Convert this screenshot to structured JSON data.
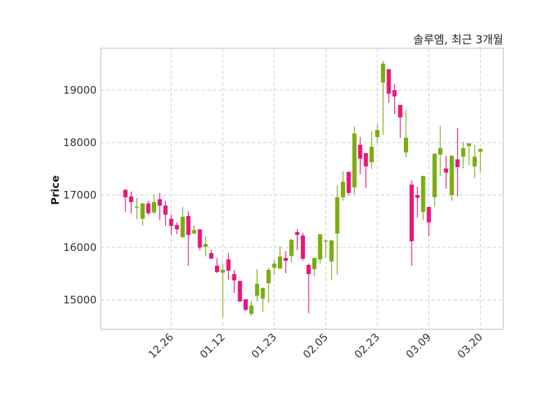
{
  "chart_data": {
    "type": "candlestick",
    "title": "솔루엠, 최근 3개월",
    "xlabel": "",
    "ylabel": "Price",
    "ylim": [
      14440,
      19800
    ],
    "xlim": [
      -4.3,
      66
    ],
    "grid": true,
    "colors": {
      "up": "#7aad12",
      "down": "#e8177a",
      "grid": "#cccccc",
      "frame": "#d0d0d0"
    },
    "yticks": [
      15000,
      16000,
      17000,
      18000,
      19000
    ],
    "xticks": [
      {
        "index": 8,
        "label": "12.26"
      },
      {
        "index": 17,
        "label": "01.12"
      },
      {
        "index": 26,
        "label": "01.23"
      },
      {
        "index": 35,
        "label": "02.05"
      },
      {
        "index": 44,
        "label": "02.23"
      },
      {
        "index": 53,
        "label": "03.09"
      },
      {
        "index": 62,
        "label": "03.20"
      }
    ],
    "ohlc_columns": [
      "open",
      "high",
      "low",
      "close"
    ],
    "ohlc": [
      [
        17100,
        17107,
        16680,
        16960
      ],
      [
        16973,
        17067,
        16653,
        16867
      ],
      [
        16767,
        16947,
        16533,
        16780
      ],
      [
        16547,
        16853,
        16413,
        16840
      ],
      [
        16840,
        16893,
        16613,
        16653
      ],
      [
        16667,
        17013,
        16640,
        16867
      ],
      [
        16920,
        17040,
        16520,
        16800
      ],
      [
        16800,
        16893,
        16413,
        16627
      ],
      [
        16547,
        16627,
        16240,
        16413
      ],
      [
        16427,
        16480,
        16253,
        16347
      ],
      [
        16200,
        16773,
        16173,
        16587
      ],
      [
        16600,
        16693,
        15653,
        16240
      ],
      [
        16267,
        16427,
        16253,
        16333
      ],
      [
        16347,
        16347,
        15947,
        16000
      ],
      [
        16013,
        16213,
        15827,
        16067
      ],
      [
        15893,
        15960,
        15787,
        15787
      ],
      [
        15653,
        15800,
        15507,
        15533
      ],
      [
        15520,
        15680,
        14667,
        15573
      ],
      [
        15773,
        15893,
        15387,
        15560
      ],
      [
        15493,
        15573,
        15133,
        15373
      ],
      [
        15360,
        15373,
        14960,
        14973
      ],
      [
        15013,
        15013,
        14787,
        14813
      ],
      [
        14733,
        14987,
        14693,
        14893
      ],
      [
        15080,
        15587,
        14973,
        15307
      ],
      [
        15027,
        15240,
        14773,
        15227
      ],
      [
        15320,
        15613,
        14947,
        15573
      ],
      [
        15613,
        15773,
        15480,
        15693
      ],
      [
        15600,
        16027,
        15587,
        15827
      ],
      [
        15800,
        15933,
        15507,
        15747
      ],
      [
        15840,
        16160,
        15720,
        16147
      ],
      [
        16293,
        16347,
        15947,
        16240
      ],
      [
        16227,
        16280,
        15747,
        15787
      ],
      [
        15667,
        15693,
        14747,
        15493
      ],
      [
        15587,
        15800,
        15453,
        15800
      ],
      [
        15773,
        16253,
        15693,
        16253
      ],
      [
        16120,
        16147,
        15800,
        16133
      ],
      [
        15733,
        16147,
        15387,
        16133
      ],
      [
        16267,
        17187,
        15480,
        16960
      ],
      [
        16960,
        17453,
        16893,
        17253
      ],
      [
        17440,
        17453,
        17000,
        17040
      ],
      [
        17147,
        18307,
        17013,
        18173
      ],
      [
        17960,
        18107,
        17400,
        17693
      ],
      [
        17800,
        17800,
        17133,
        17547
      ],
      [
        17627,
        18213,
        17493,
        17920
      ],
      [
        18107,
        18347,
        18000,
        18240
      ],
      [
        19147,
        19560,
        18147,
        19507
      ],
      [
        19400,
        19400,
        18760,
        18933
      ],
      [
        19000,
        19120,
        18547,
        18880
      ],
      [
        18720,
        18720,
        18093,
        18480
      ],
      [
        17813,
        18627,
        17720,
        18093
      ],
      [
        17200,
        17280,
        15653,
        16120
      ],
      [
        17000,
        17160,
        16573,
        16947
      ],
      [
        16680,
        17373,
        16520,
        17360
      ],
      [
        16773,
        16773,
        16213,
        16480
      ],
      [
        16960,
        17800,
        16773,
        17787
      ],
      [
        17773,
        18320,
        17360,
        17893
      ],
      [
        17507,
        17747,
        17120,
        17427
      ],
      [
        17000,
        17760,
        16893,
        17747
      ],
      [
        17680,
        18280,
        16973,
        17533
      ],
      [
        17733,
        18013,
        17507,
        17893
      ],
      [
        17933,
        17987,
        17573,
        17987
      ],
      [
        17547,
        17947,
        17320,
        17733
      ],
      [
        17827,
        17893,
        17453,
        17880
      ]
    ]
  }
}
